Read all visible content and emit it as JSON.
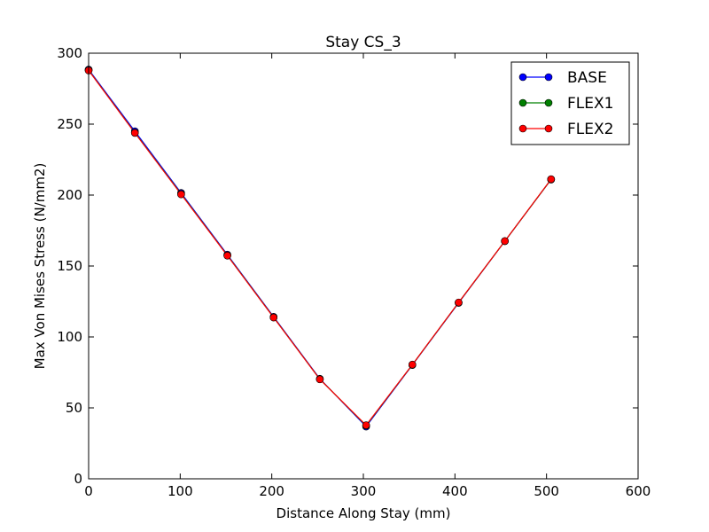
{
  "chart_data": {
    "type": "line",
    "title": "Stay CS_3",
    "xlabel": "Distance Along Stay (mm)",
    "ylabel": "Max Von Mises Stress (N/mm2)",
    "xlim": [
      0,
      600
    ],
    "ylim": [
      0,
      300
    ],
    "xticks": [
      "0",
      "100",
      "200",
      "300",
      "400",
      "500",
      "600"
    ],
    "yticks": [
      "0",
      "50",
      "100",
      "150",
      "200",
      "250",
      "300"
    ],
    "grid": false,
    "legend_position": "top-right",
    "x": [
      0,
      50.5,
      101,
      151.5,
      202,
      252.5,
      303,
      353.5,
      404,
      454.5,
      505
    ],
    "series": [
      {
        "name": "BASE",
        "color": "#0000ff",
        "values": [
          288.5,
          245,
          201.5,
          158,
          114.2,
          70.5,
          36.8,
          80.2,
          124,
          167.5,
          211
        ]
      },
      {
        "name": "FLEX1",
        "color": "#008000",
        "values": [
          288,
          244,
          200.8,
          157.5,
          113.8,
          70.2,
          37.5,
          80.4,
          124.2,
          167.5,
          211
        ]
      },
      {
        "name": "FLEX2",
        "color": "#ff0000",
        "values": [
          287.8,
          243.8,
          200.5,
          157.3,
          113.7,
          70.1,
          37.8,
          80.5,
          124.3,
          167.6,
          211.2
        ]
      }
    ]
  }
}
